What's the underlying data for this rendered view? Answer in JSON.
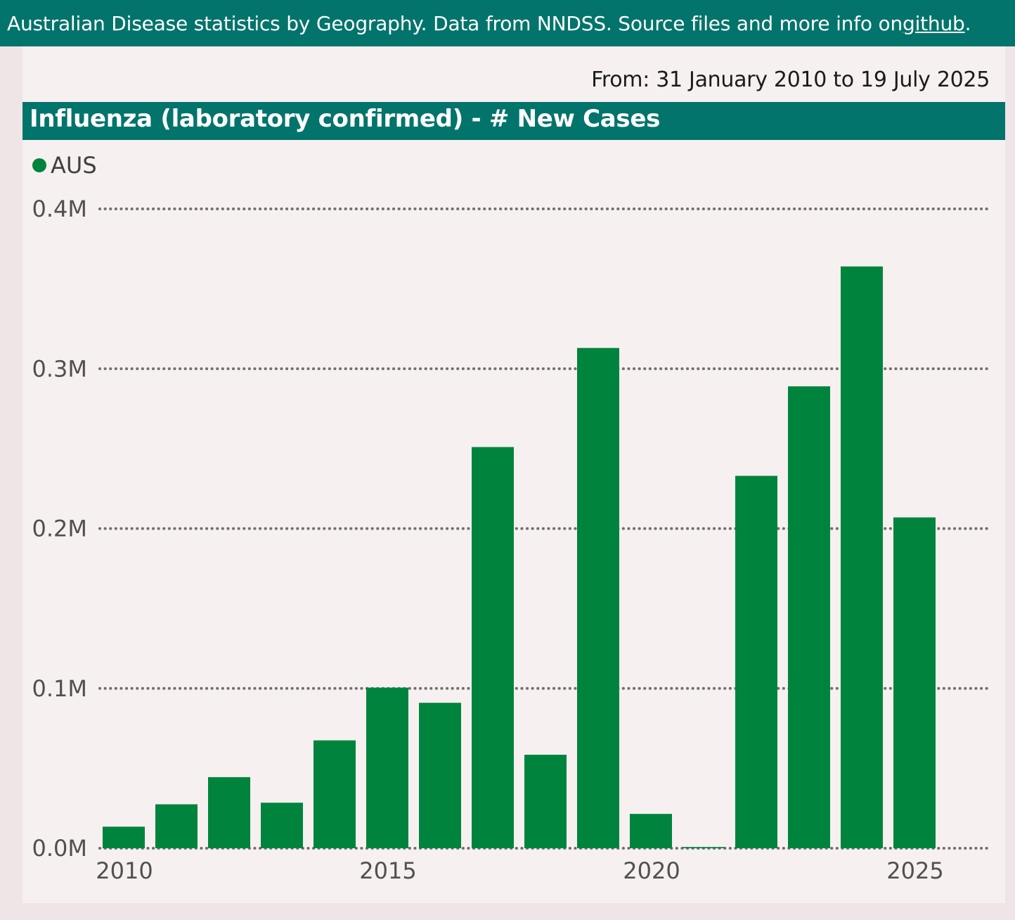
{
  "header": {
    "text": "Australian Disease statistics by Geography. Data from NNDSS. Source files and more info on ",
    "link_label": "github",
    "suffix": "."
  },
  "date_range": "From: 31 January 2010 to 19 July 2025",
  "colors": {
    "brand": "#02746b",
    "bar": "#00843d",
    "grid": "#6f6f6f"
  },
  "chart_data": {
    "type": "bar",
    "title": "Influenza (laboratory confirmed) - # New Cases",
    "legend": [
      "AUS"
    ],
    "legend_position": "top-left",
    "grid": true,
    "categories": [
      2010,
      2011,
      2012,
      2013,
      2014,
      2015,
      2016,
      2017,
      2018,
      2019,
      2020,
      2021,
      2022,
      2023,
      2024,
      2025
    ],
    "series": [
      {
        "name": "AUS",
        "values": [
          13500,
          27500,
          44500,
          28500,
          67500,
          100500,
          91000,
          251000,
          58500,
          313000,
          21500,
          750,
          233000,
          289000,
          364000,
          207000
        ]
      }
    ],
    "ylim": [
      0,
      400000
    ],
    "yticks": [
      0,
      100000,
      200000,
      300000,
      400000
    ],
    "ytick_labels": [
      "0.0M",
      "0.1M",
      "0.2M",
      "0.3M",
      "0.4M"
    ],
    "xtick_labels": [
      "2010",
      "2015",
      "2020",
      "2025"
    ],
    "xlabel": "",
    "ylabel": ""
  }
}
